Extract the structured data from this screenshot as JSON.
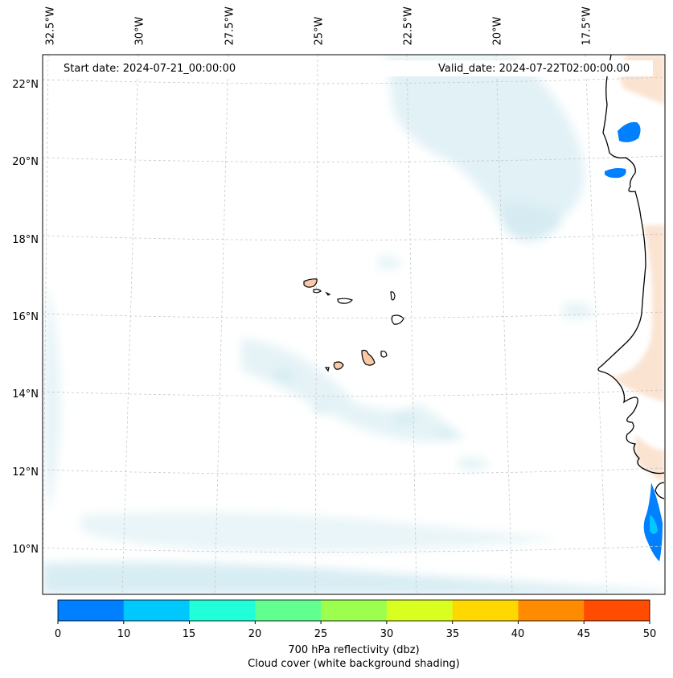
{
  "map": {
    "start_label": "Start date: 2024-07-21_00:00:00",
    "valid_label": "Valid_date: 2024-07-22T02:00:00.00",
    "lon_labels": [
      "32.5°W",
      "30°W",
      "27.5°W",
      "25°W",
      "22.5°W",
      "20°W",
      "17.5°W"
    ],
    "lat_labels": [
      "22°N",
      "20°N",
      "18°N",
      "16°N",
      "14°N",
      "12°N",
      "10°N"
    ],
    "gridlines": "dashed",
    "background": "#ffffff",
    "coastline_color": "#000000",
    "land_highlight_color": "#f7c9a6"
  },
  "colorbar": {
    "ticks": [
      "0",
      "10",
      "15",
      "20",
      "25",
      "30",
      "35",
      "40",
      "45",
      "50"
    ],
    "colors": [
      "#0080ff",
      "#00c8ff",
      "#20ffd8",
      "#60ff90",
      "#9cff50",
      "#d8ff20",
      "#ffd800",
      "#ff8c00",
      "#ff4c00"
    ],
    "label_line1": "700 hPa reflectivity (dbz)",
    "label_line2": "Cloud cover (white background shading)"
  }
}
